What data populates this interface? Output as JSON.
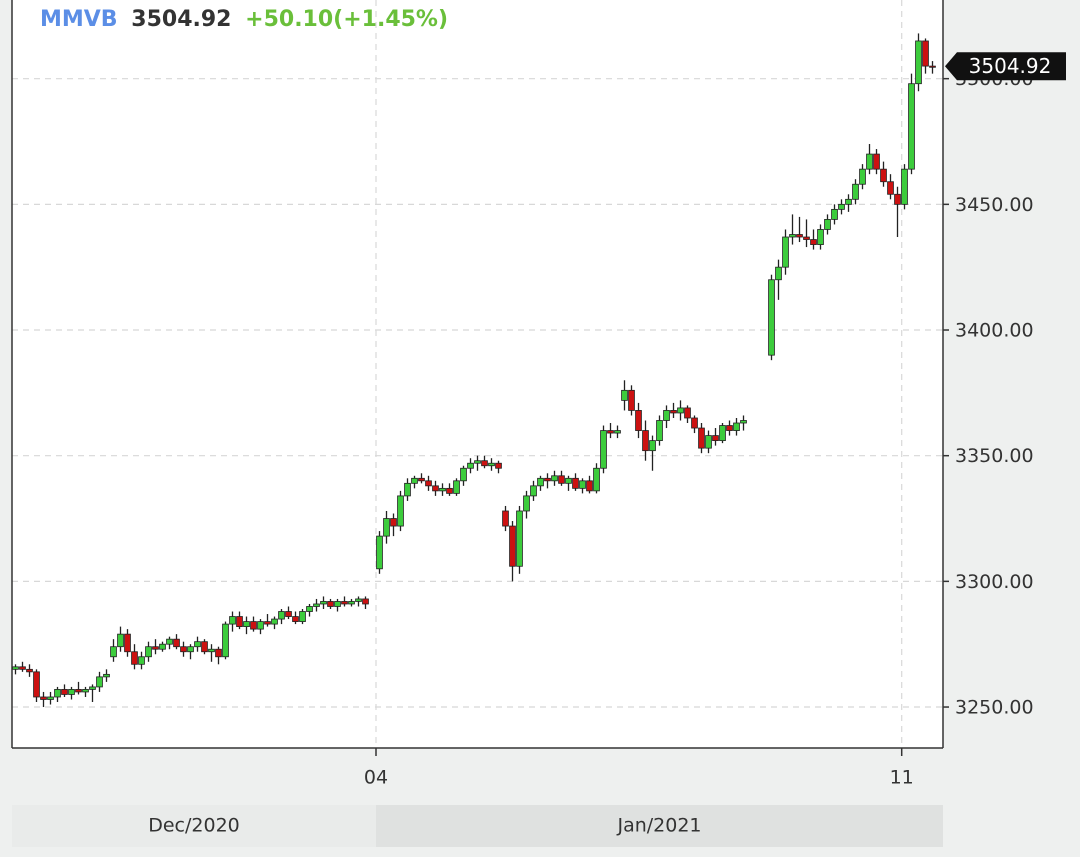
{
  "chart_data": {
    "type": "candlestick",
    "symbol": "MMVB",
    "change": "+50.10(+1.45%)",
    "up_color": "#3ccc3c",
    "down_color": "#cc1111",
    "grid": true,
    "ylim": [
      3233.7,
      3531.3
    ],
    "yticks": [
      {
        "value": 3250,
        "label": "3250.00"
      },
      {
        "value": 3300,
        "label": "3300.00"
      },
      {
        "value": 3350,
        "label": "3350.00"
      },
      {
        "value": 3400,
        "label": "3400.00"
      },
      {
        "value": 3450,
        "label": "3450.00"
      },
      {
        "value": 3500,
        "label": "3500.00"
      }
    ],
    "xlim": [
      -0.5,
      132.5
    ],
    "xticks": [
      {
        "value": 51.5,
        "label": "04"
      },
      {
        "value": 126.6,
        "label": "11"
      }
    ],
    "months": [
      {
        "label": "Dec/2020",
        "range": [
          -0.5,
          51.5
        ]
      },
      {
        "label": "Jan/2021",
        "range": [
          51.5,
          132.5
        ]
      }
    ],
    "x": [
      0,
      1,
      2,
      3,
      4,
      5,
      6,
      7,
      8,
      9,
      10,
      11,
      12,
      13,
      14,
      15,
      16,
      17,
      18,
      19,
      20,
      21,
      22,
      23,
      24,
      25,
      26,
      27,
      28,
      29,
      30,
      31,
      32,
      33,
      34,
      35,
      36,
      37,
      38,
      39,
      40,
      41,
      42,
      43,
      44,
      45,
      46,
      47,
      48,
      49,
      50,
      52,
      53,
      54,
      55,
      56,
      57,
      58,
      59,
      60,
      61,
      62,
      63,
      64,
      65,
      66,
      67,
      68,
      69,
      70,
      71,
      72,
      73,
      74,
      75,
      76,
      77,
      78,
      79,
      80,
      81,
      82,
      83,
      84,
      85,
      86,
      87,
      88,
      89,
      90,
      91,
      92,
      93,
      94,
      95,
      96,
      97,
      98,
      99,
      100,
      101,
      102,
      103,
      104,
      108,
      109,
      110,
      111,
      112,
      113,
      114,
      115,
      116,
      117,
      118,
      119,
      120,
      121,
      122,
      123,
      124,
      125,
      126,
      127,
      128,
      129,
      130,
      131
    ],
    "ohlc": [
      [
        3265,
        3267,
        3263,
        3266
      ],
      [
        3266,
        3268,
        3264,
        3265
      ],
      [
        3265,
        3267,
        3262,
        3264
      ],
      [
        3264,
        3265,
        3252,
        3254
      ],
      [
        3254,
        3256,
        3250,
        3253
      ],
      [
        3253,
        3256,
        3251,
        3254
      ],
      [
        3254,
        3258,
        3252,
        3257
      ],
      [
        3257,
        3259,
        3254,
        3255
      ],
      [
        3255,
        3258,
        3253,
        3257
      ],
      [
        3257,
        3260,
        3255,
        3256
      ],
      [
        3256,
        3258,
        3254,
        3257
      ],
      [
        3257,
        3259,
        3252,
        3258
      ],
      [
        3258,
        3264,
        3256,
        3262
      ],
      [
        3262,
        3265,
        3260,
        3263
      ],
      [
        3270,
        3277,
        3268,
        3274
      ],
      [
        3274,
        3282,
        3272,
        3279
      ],
      [
        3279,
        3281,
        3270,
        3272
      ],
      [
        3272,
        3275,
        3265,
        3267
      ],
      [
        3267,
        3272,
        3265,
        3270
      ],
      [
        3270,
        3276,
        3268,
        3274
      ],
      [
        3274,
        3277,
        3271,
        3273
      ],
      [
        3273,
        3276,
        3272,
        3275
      ],
      [
        3275,
        3278,
        3273,
        3277
      ],
      [
        3277,
        3279,
        3273,
        3274
      ],
      [
        3274,
        3276,
        3270,
        3272
      ],
      [
        3272,
        3275,
        3269,
        3274
      ],
      [
        3274,
        3278,
        3272,
        3276
      ],
      [
        3276,
        3277,
        3271,
        3272
      ],
      [
        3272,
        3275,
        3268,
        3273
      ],
      [
        3273,
        3274,
        3267,
        3270
      ],
      [
        3270,
        3284,
        3269,
        3283
      ],
      [
        3283,
        3288,
        3280,
        3286
      ],
      [
        3286,
        3288,
        3281,
        3282
      ],
      [
        3282,
        3286,
        3279,
        3284
      ],
      [
        3284,
        3286,
        3280,
        3281
      ],
      [
        3281,
        3285,
        3279,
        3284
      ],
      [
        3284,
        3287,
        3282,
        3283
      ],
      [
        3283,
        3286,
        3281,
        3285
      ],
      [
        3285,
        3289,
        3283,
        3288
      ],
      [
        3288,
        3290,
        3285,
        3286
      ],
      [
        3286,
        3288,
        3283,
        3284
      ],
      [
        3284,
        3289,
        3283,
        3288
      ],
      [
        3288,
        3291,
        3286,
        3290
      ],
      [
        3290,
        3293,
        3288,
        3291
      ],
      [
        3291,
        3294,
        3289,
        3292
      ],
      [
        3292,
        3293,
        3289,
        3290
      ],
      [
        3290,
        3293,
        3288,
        3292
      ],
      [
        3292,
        3294,
        3290,
        3291
      ],
      [
        3291,
        3293,
        3290,
        3292
      ],
      [
        3292,
        3294,
        3290,
        3293
      ],
      [
        3293,
        3294,
        3289,
        3291
      ],
      [
        3305,
        3320,
        3303,
        3318
      ],
      [
        3318,
        3328,
        3315,
        3325
      ],
      [
        3325,
        3327,
        3318,
        3322
      ],
      [
        3322,
        3336,
        3320,
        3334
      ],
      [
        3334,
        3341,
        3332,
        3339
      ],
      [
        3339,
        3342,
        3337,
        3341
      ],
      [
        3341,
        3343,
        3339,
        3340
      ],
      [
        3340,
        3342,
        3336,
        3338
      ],
      [
        3338,
        3340,
        3334,
        3336
      ],
      [
        3336,
        3339,
        3334,
        3337
      ],
      [
        3337,
        3339,
        3334,
        3335
      ],
      [
        3335,
        3341,
        3334,
        3340
      ],
      [
        3340,
        3346,
        3338,
        3345
      ],
      [
        3345,
        3349,
        3343,
        3347
      ],
      [
        3347,
        3350,
        3344,
        3348
      ],
      [
        3348,
        3350,
        3345,
        3346
      ],
      [
        3346,
        3349,
        3344,
        3347
      ],
      [
        3347,
        3348,
        3343,
        3345
      ],
      [
        3328,
        3330,
        3320,
        3322
      ],
      [
        3322,
        3324,
        3300,
        3306
      ],
      [
        3306,
        3330,
        3303,
        3328
      ],
      [
        3328,
        3336,
        3325,
        3334
      ],
      [
        3334,
        3340,
        3332,
        3338
      ],
      [
        3338,
        3342,
        3336,
        3341
      ],
      [
        3341,
        3343,
        3337,
        3340
      ],
      [
        3340,
        3344,
        3338,
        3342
      ],
      [
        3342,
        3344,
        3338,
        3339
      ],
      [
        3339,
        3342,
        3336,
        3341
      ],
      [
        3341,
        3343,
        3336,
        3337
      ],
      [
        3337,
        3341,
        3335,
        3340
      ],
      [
        3340,
        3342,
        3335,
        3336
      ],
      [
        3336,
        3347,
        3335,
        3345
      ],
      [
        3345,
        3362,
        3343,
        3360
      ],
      [
        3360,
        3363,
        3357,
        3359
      ],
      [
        3359,
        3362,
        3357,
        3360
      ],
      [
        3372,
        3380,
        3368,
        3376
      ],
      [
        3376,
        3378,
        3366,
        3368
      ],
      [
        3368,
        3371,
        3357,
        3360
      ],
      [
        3360,
        3364,
        3348,
        3352
      ],
      [
        3352,
        3358,
        3344,
        3356
      ],
      [
        3356,
        3366,
        3354,
        3364
      ],
      [
        3364,
        3370,
        3361,
        3368
      ],
      [
        3368,
        3371,
        3365,
        3367
      ],
      [
        3367,
        3372,
        3364,
        3369
      ],
      [
        3369,
        3370,
        3363,
        3365
      ],
      [
        3365,
        3366,
        3359,
        3361
      ],
      [
        3361,
        3363,
        3351,
        3353
      ],
      [
        3353,
        3360,
        3351,
        3358
      ],
      [
        3358,
        3361,
        3354,
        3356
      ],
      [
        3356,
        3363,
        3355,
        3362
      ],
      [
        3362,
        3364,
        3358,
        3360
      ],
      [
        3360,
        3365,
        3358,
        3363
      ],
      [
        3363,
        3366,
        3360,
        3364
      ],
      [
        3390,
        3422,
        3388,
        3420
      ],
      [
        3420,
        3428,
        3412,
        3425
      ],
      [
        3425,
        3440,
        3422,
        3437
      ],
      [
        3437,
        3446,
        3434,
        3438
      ],
      [
        3438,
        3445,
        3435,
        3437
      ],
      [
        3437,
        3444,
        3433,
        3436
      ],
      [
        3436,
        3440,
        3432,
        3434
      ],
      [
        3434,
        3442,
        3432,
        3440
      ],
      [
        3440,
        3446,
        3438,
        3444
      ],
      [
        3444,
        3450,
        3442,
        3448
      ],
      [
        3448,
        3452,
        3446,
        3450
      ],
      [
        3450,
        3454,
        3447,
        3452
      ],
      [
        3452,
        3460,
        3450,
        3458
      ],
      [
        3458,
        3466,
        3456,
        3464
      ],
      [
        3464,
        3474,
        3462,
        3470
      ],
      [
        3470,
        3472,
        3462,
        3464
      ],
      [
        3464,
        3467,
        3457,
        3459
      ],
      [
        3459,
        3462,
        3452,
        3454
      ],
      [
        3454,
        3457,
        3437,
        3450
      ],
      [
        3450,
        3466,
        3448,
        3464
      ],
      [
        3464,
        3502,
        3462,
        3498
      ],
      [
        3498,
        3518,
        3495,
        3515
      ],
      [
        3515,
        3516,
        3502,
        3505
      ],
      [
        3505,
        3507,
        3502,
        3504.92
      ]
    ]
  }
}
